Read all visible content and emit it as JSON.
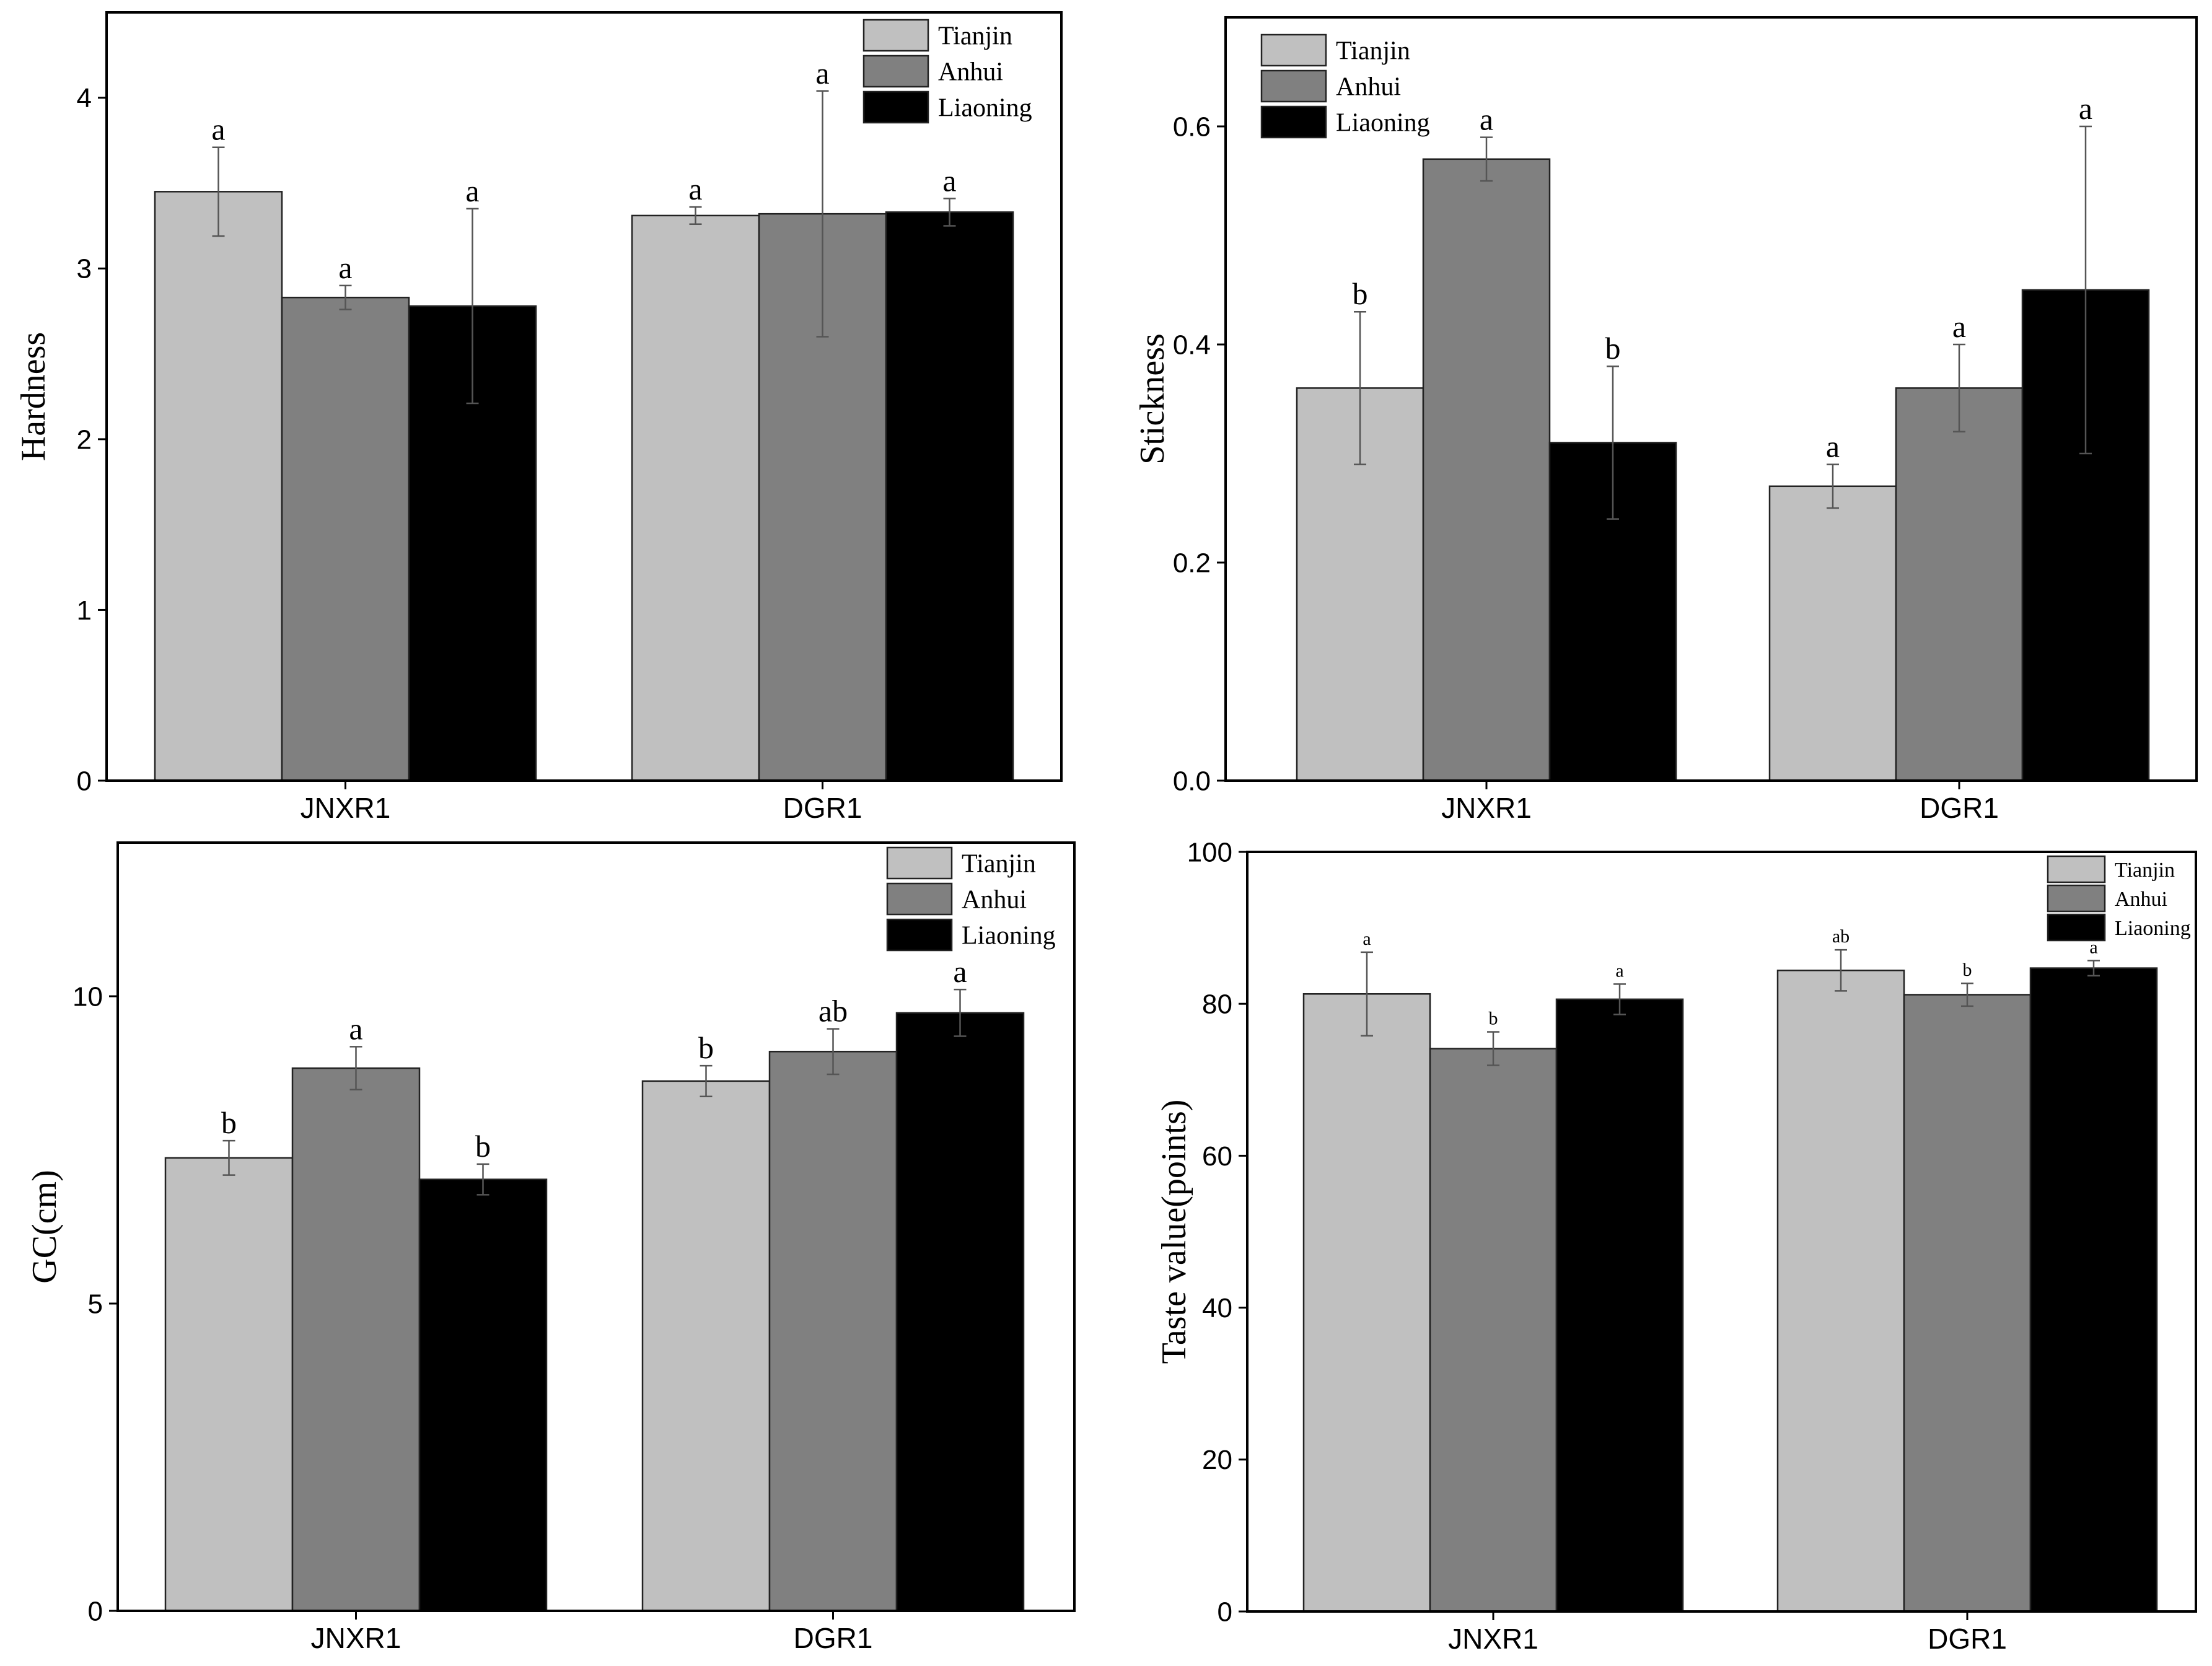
{
  "colors": {
    "Tianjin": "#c0c0c0",
    "Anhui": "#808080",
    "Liaoning": "#000000",
    "frame": "#000000"
  },
  "chart_data": [
    {
      "type": "bar",
      "ylabel": "Hardness",
      "xlabel": "",
      "categories": [
        "JNXR1",
        "DGR1"
      ],
      "ylim": [
        0,
        4.5
      ],
      "yticks": [
        0,
        1,
        2,
        3,
        4
      ],
      "legend_position": "top-right",
      "series": [
        {
          "name": "Tianjin",
          "values": [
            3.45,
            3.31
          ],
          "errors": [
            0.26,
            0.05
          ],
          "labels": [
            "a",
            "a"
          ]
        },
        {
          "name": "Anhui",
          "values": [
            2.83,
            3.32
          ],
          "errors": [
            0.07,
            0.72
          ],
          "labels": [
            "a",
            "a"
          ]
        },
        {
          "name": "Liaoning",
          "values": [
            2.78,
            3.33
          ],
          "errors": [
            0.57,
            0.08
          ],
          "labels": [
            "a",
            "a"
          ]
        }
      ]
    },
    {
      "type": "bar",
      "ylabel": "Stickness",
      "xlabel": "",
      "categories": [
        "JNXR1",
        "DGR1"
      ],
      "ylim": [
        0,
        0.7
      ],
      "yticks": [
        "0.0",
        "0.2",
        "0.4",
        "0.6"
      ],
      "legend_position": "top-left",
      "series": [
        {
          "name": "Tianjin",
          "values": [
            0.36,
            0.27
          ],
          "errors": [
            0.07,
            0.02
          ],
          "labels": [
            "b",
            "a"
          ]
        },
        {
          "name": "Anhui",
          "values": [
            0.57,
            0.36
          ],
          "errors": [
            0.02,
            0.04
          ],
          "labels": [
            "a",
            "a"
          ]
        },
        {
          "name": "Liaoning",
          "values": [
            0.31,
            0.45
          ],
          "errors": [
            0.07,
            0.15
          ],
          "labels": [
            "b",
            "a"
          ]
        }
      ]
    },
    {
      "type": "bar",
      "ylabel": "GC(cm)",
      "xlabel": "",
      "categories": [
        "JNXR1",
        "DGR1"
      ],
      "ylim": [
        0,
        12.5
      ],
      "yticks": [
        0,
        5,
        10
      ],
      "legend_position": "top-right",
      "series": [
        {
          "name": "Tianjin",
          "values": [
            7.37,
            8.62
          ],
          "errors": [
            0.28,
            0.25
          ],
          "labels": [
            "b",
            "b"
          ]
        },
        {
          "name": "Anhui",
          "values": [
            8.83,
            9.1
          ],
          "errors": [
            0.35,
            0.37
          ],
          "labels": [
            "a",
            "ab"
          ]
        },
        {
          "name": "Liaoning",
          "values": [
            7.02,
            9.73
          ],
          "errors": [
            0.25,
            0.38
          ],
          "labels": [
            "b",
            "a"
          ]
        }
      ]
    },
    {
      "type": "bar",
      "ylabel": "Taste value(points)",
      "xlabel": "",
      "categories": [
        "JNXR1",
        "DGR1"
      ],
      "ylim": [
        0,
        100
      ],
      "yticks": [
        0,
        20,
        40,
        60,
        80,
        100
      ],
      "legend_position": "top-right",
      "series": [
        {
          "name": "Tianjin",
          "values": [
            81.3,
            84.4
          ],
          "errors": [
            5.5,
            2.7
          ],
          "labels": [
            "a",
            "ab"
          ]
        },
        {
          "name": "Anhui",
          "values": [
            74.1,
            81.2
          ],
          "errors": [
            2.2,
            1.5
          ],
          "labels": [
            "b",
            "b"
          ]
        },
        {
          "name": "Liaoning",
          "values": [
            80.6,
            84.7
          ],
          "errors": [
            2.0,
            1.0
          ],
          "labels": [
            "a",
            "a"
          ]
        }
      ]
    }
  ]
}
